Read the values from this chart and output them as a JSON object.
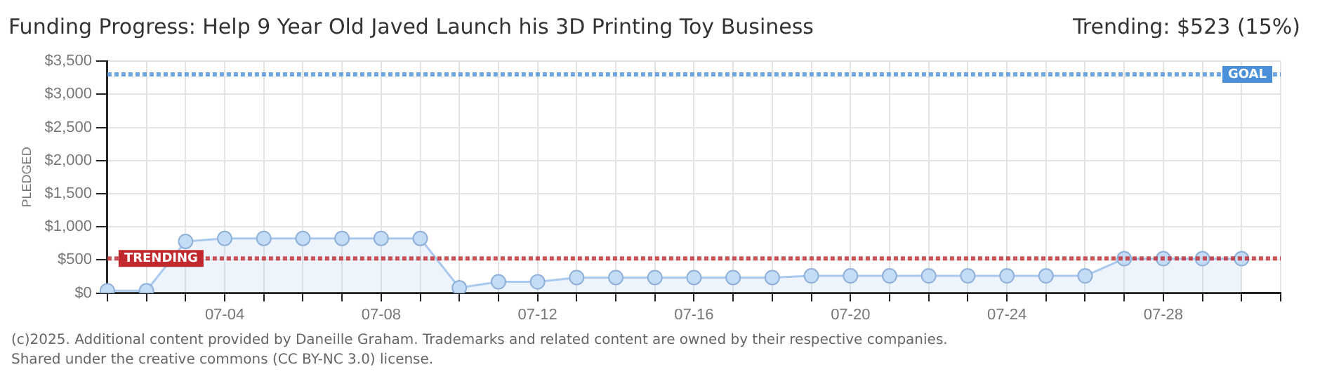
{
  "chart_data": {
    "type": "area",
    "title": "Funding Progress: Help 9 Year Old Javed Launch his 3D Printing Toy Business",
    "subtitle": "Trending: $523 (15%)",
    "ylabel": "PLEDGED",
    "categories": [
      null,
      null,
      null,
      "07-04",
      null,
      null,
      null,
      "07-08",
      null,
      null,
      null,
      "07-12",
      null,
      null,
      null,
      "07-16",
      null,
      null,
      null,
      "07-20",
      null,
      null,
      null,
      "07-24",
      null,
      null,
      null,
      "07-28",
      null,
      null,
      null
    ],
    "series": [
      {
        "color": "#a9c9ee",
        "values": [
          35,
          35,
          780,
          825,
          825,
          825,
          825,
          825,
          825,
          80,
          170,
          170,
          235,
          235,
          235,
          235,
          235,
          235,
          260,
          260,
          260,
          260,
          260,
          260,
          260,
          260,
          520,
          520,
          520,
          520,
          null
        ]
      }
    ],
    "ylim": [
      0,
      3500
    ],
    "yticks": [
      {
        "value": 0,
        "label": "$0"
      },
      {
        "value": 500,
        "label": "$500"
      },
      {
        "value": 1000,
        "label": "$1,000"
      },
      {
        "value": 1500,
        "label": "$1,500"
      },
      {
        "value": 2000,
        "label": "$2,000"
      },
      {
        "value": 2500,
        "label": "$2,500"
      },
      {
        "value": 3000,
        "label": "$3,000"
      },
      {
        "value": 3500,
        "label": "$3,500"
      }
    ],
    "ref_lines": [
      {
        "axis": "y",
        "value": 3300,
        "label": "GOAL",
        "color": "#4a90d9"
      },
      {
        "axis": "y",
        "value": 523,
        "label": "TRENDING",
        "color": "#c0292e"
      }
    ],
    "grid": true,
    "marker": "circle",
    "legend": false,
    "annotations": [
      "(c)2025. Additional content provided by Daneille Graham. Trademarks and related content are owned by their respective companies.",
      "Shared under the creative commons (CC BY-NC 3.0) license."
    ]
  }
}
